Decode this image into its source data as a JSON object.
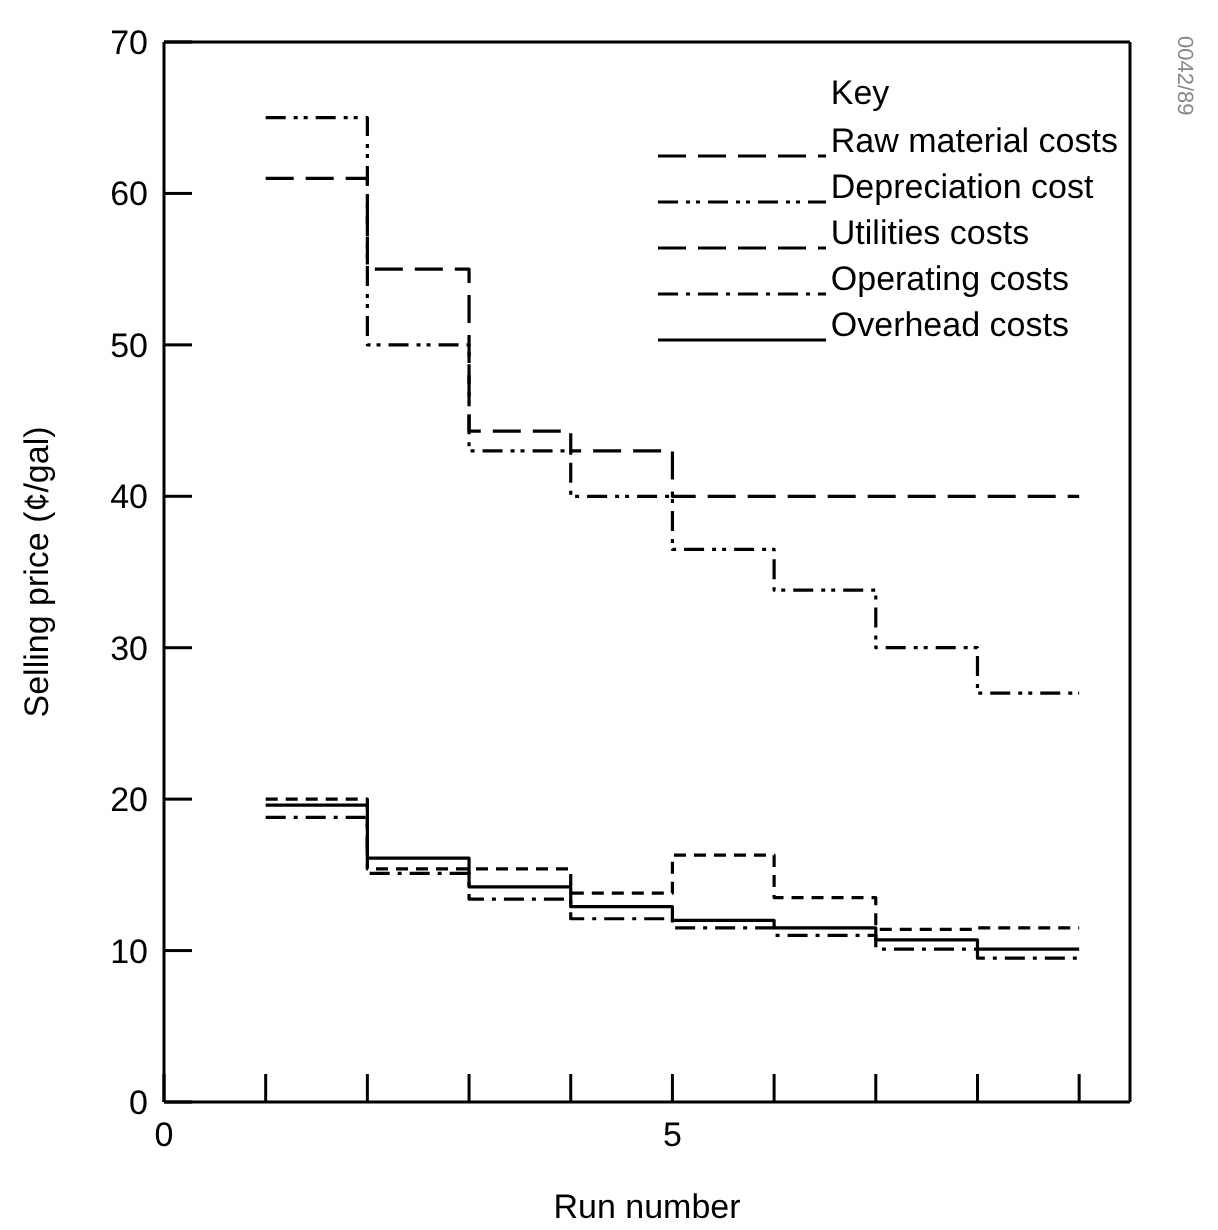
{
  "chart_data": {
    "type": "step",
    "xlabel": "Run number",
    "ylabel": "Selling price (¢/gal)",
    "legend_title": "Key",
    "x": [
      1,
      2,
      3,
      4,
      5,
      6,
      7,
      8,
      9
    ],
    "series": [
      {
        "name": "Raw material costs",
        "color": "#000000",
        "line_style": "dashed",
        "values": [
          61,
          55,
          44.3,
          43,
          40,
          40,
          40,
          40,
          40
        ]
      },
      {
        "name": "Depreciation cost",
        "color": "#000000",
        "line_style": "dashdotdot",
        "values": [
          65,
          50,
          43,
          40,
          36.5,
          33.8,
          30,
          27,
          27
        ]
      },
      {
        "name": "Utilities costs",
        "color": "#000000",
        "line_style": "dashed",
        "values": [
          20,
          15.4,
          15.4,
          13.8,
          16.3,
          13.5,
          11.4,
          11.5,
          11.5
        ]
      },
      {
        "name": "Operating costs",
        "color": "#000000",
        "line_style": "dashdot",
        "values": [
          18.8,
          15.1,
          13.4,
          12.1,
          11.5,
          11,
          10.1,
          9.5,
          9.5
        ]
      },
      {
        "name": "Overhead costs",
        "color": "#000000",
        "line_style": "solid",
        "values": [
          19.6,
          16.1,
          14.2,
          12.9,
          12,
          11.5,
          10.7,
          10.1,
          10.1
        ]
      }
    ],
    "xlim": [
      0,
      9.5
    ],
    "xticks": [
      0,
      {
        "value": 1,
        "label": null
      },
      {
        "value": 2,
        "label": null
      },
      {
        "value": 3,
        "label": null
      },
      {
        "value": 4,
        "label": null
      },
      5,
      {
        "value": 6,
        "label": null
      },
      {
        "value": 7,
        "label": null
      },
      {
        "value": 8,
        "label": null
      },
      {
        "value": 9,
        "label": null
      }
    ],
    "ylim": [
      0,
      70
    ],
    "yticks": [
      0,
      10,
      20,
      30,
      40,
      50,
      60,
      70
    ],
    "grid": false,
    "legend": "top right",
    "marker": "none",
    "annotations": [
      "0042/89"
    ]
  }
}
